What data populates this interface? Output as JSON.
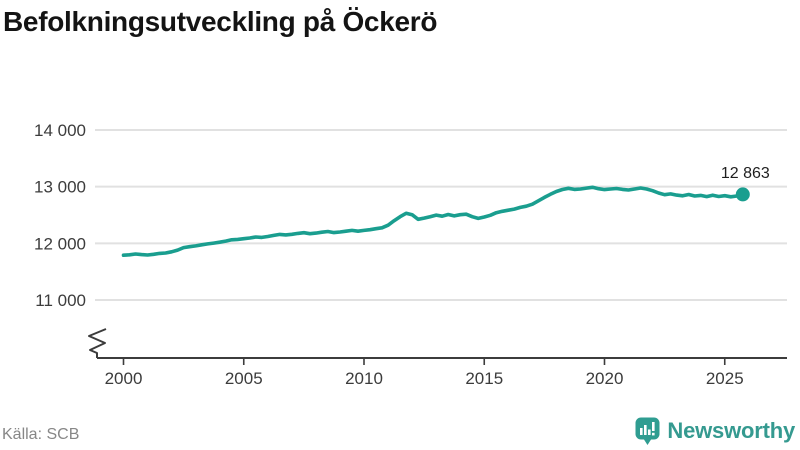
{
  "header": {
    "title": "Befolkningsutveckling på Öckerö"
  },
  "footer": {
    "source": "Källa: SCB",
    "brand": "Newsworthy"
  },
  "colors": {
    "title": "#141414",
    "line": "#1a9e8f",
    "grid": "#e1e1e1",
    "axis": "#3c3c3c",
    "tick_text": "#3c3c3c",
    "annotation": "#1f1f1f",
    "source_text": "#878787",
    "brand": "#359a90"
  },
  "chart_data": {
    "type": "line",
    "title": "Befolkningsutveckling på Öckerö",
    "xlabel": "",
    "ylabel": "",
    "x_ticks": [
      {
        "year": 2000,
        "label": "2000"
      },
      {
        "year": 2005,
        "label": "2005"
      },
      {
        "year": 2010,
        "label": "2010"
      },
      {
        "year": 2015,
        "label": "2015"
      },
      {
        "year": 2020,
        "label": "2020"
      },
      {
        "year": 2025,
        "label": "2025"
      }
    ],
    "y_ticks": [
      {
        "value": 14000,
        "label": "14 000"
      },
      {
        "value": 13000,
        "label": "13 000"
      },
      {
        "value": 12000,
        "label": "12 000"
      },
      {
        "value": 11000,
        "label": "11 000"
      }
    ],
    "ylim": [
      11000,
      14000
    ],
    "y_axis_truncated": true,
    "grid": true,
    "legend": "none",
    "last_point_label": "12 863",
    "last_point_value": 12863,
    "series": [
      {
        "name": "Befolkning",
        "points": [
          [
            2000.0,
            11790
          ],
          [
            2000.25,
            11798
          ],
          [
            2000.5,
            11812
          ],
          [
            2000.75,
            11802
          ],
          [
            2001.0,
            11795
          ],
          [
            2001.25,
            11806
          ],
          [
            2001.5,
            11822
          ],
          [
            2001.75,
            11830
          ],
          [
            2002.0,
            11850
          ],
          [
            2002.25,
            11880
          ],
          [
            2002.5,
            11925
          ],
          [
            2002.75,
            11940
          ],
          [
            2003.0,
            11955
          ],
          [
            2003.25,
            11975
          ],
          [
            2003.5,
            11990
          ],
          [
            2003.75,
            12005
          ],
          [
            2004.0,
            12020
          ],
          [
            2004.25,
            12040
          ],
          [
            2004.5,
            12062
          ],
          [
            2004.75,
            12070
          ],
          [
            2005.0,
            12082
          ],
          [
            2005.25,
            12095
          ],
          [
            2005.5,
            12112
          ],
          [
            2005.75,
            12105
          ],
          [
            2006.0,
            12120
          ],
          [
            2006.25,
            12140
          ],
          [
            2006.5,
            12158
          ],
          [
            2006.75,
            12148
          ],
          [
            2007.0,
            12160
          ],
          [
            2007.25,
            12175
          ],
          [
            2007.5,
            12188
          ],
          [
            2007.75,
            12170
          ],
          [
            2008.0,
            12180
          ],
          [
            2008.25,
            12196
          ],
          [
            2008.5,
            12208
          ],
          [
            2008.75,
            12190
          ],
          [
            2009.0,
            12200
          ],
          [
            2009.25,
            12215
          ],
          [
            2009.5,
            12228
          ],
          [
            2009.75,
            12215
          ],
          [
            2010.0,
            12228
          ],
          [
            2010.25,
            12240
          ],
          [
            2010.5,
            12258
          ],
          [
            2010.75,
            12275
          ],
          [
            2011.0,
            12320
          ],
          [
            2011.25,
            12400
          ],
          [
            2011.5,
            12470
          ],
          [
            2011.75,
            12530
          ],
          [
            2012.0,
            12505
          ],
          [
            2012.25,
            12425
          ],
          [
            2012.5,
            12445
          ],
          [
            2012.75,
            12470
          ],
          [
            2013.0,
            12498
          ],
          [
            2013.25,
            12478
          ],
          [
            2013.5,
            12508
          ],
          [
            2013.75,
            12485
          ],
          [
            2014.0,
            12505
          ],
          [
            2014.25,
            12515
          ],
          [
            2014.5,
            12470
          ],
          [
            2014.75,
            12440
          ],
          [
            2015.0,
            12465
          ],
          [
            2015.25,
            12495
          ],
          [
            2015.5,
            12540
          ],
          [
            2015.75,
            12565
          ],
          [
            2016.0,
            12585
          ],
          [
            2016.25,
            12605
          ],
          [
            2016.5,
            12635
          ],
          [
            2016.75,
            12655
          ],
          [
            2017.0,
            12690
          ],
          [
            2017.25,
            12750
          ],
          [
            2017.5,
            12810
          ],
          [
            2017.75,
            12865
          ],
          [
            2018.0,
            12915
          ],
          [
            2018.25,
            12950
          ],
          [
            2018.5,
            12972
          ],
          [
            2018.75,
            12952
          ],
          [
            2019.0,
            12958
          ],
          [
            2019.25,
            12975
          ],
          [
            2019.5,
            12988
          ],
          [
            2019.75,
            12965
          ],
          [
            2020.0,
            12948
          ],
          [
            2020.25,
            12958
          ],
          [
            2020.5,
            12968
          ],
          [
            2020.75,
            12952
          ],
          [
            2021.0,
            12942
          ],
          [
            2021.25,
            12958
          ],
          [
            2021.5,
            12976
          ],
          [
            2021.75,
            12958
          ],
          [
            2022.0,
            12928
          ],
          [
            2022.25,
            12888
          ],
          [
            2022.5,
            12858
          ],
          [
            2022.75,
            12872
          ],
          [
            2023.0,
            12852
          ],
          [
            2023.25,
            12838
          ],
          [
            2023.5,
            12862
          ],
          [
            2023.75,
            12835
          ],
          [
            2024.0,
            12846
          ],
          [
            2024.25,
            12824
          ],
          [
            2024.5,
            12850
          ],
          [
            2024.75,
            12826
          ],
          [
            2025.0,
            12840
          ],
          [
            2025.25,
            12822
          ],
          [
            2025.5,
            12836
          ],
          [
            2025.75,
            12863
          ]
        ]
      }
    ]
  }
}
